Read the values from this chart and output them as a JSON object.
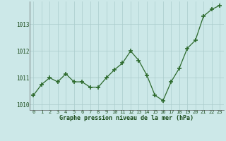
{
  "x": [
    0,
    1,
    2,
    3,
    4,
    5,
    6,
    7,
    8,
    9,
    10,
    11,
    12,
    13,
    14,
    15,
    16,
    17,
    18,
    19,
    20,
    21,
    22,
    23
  ],
  "y": [
    1010.35,
    1010.75,
    1011.0,
    1010.85,
    1011.15,
    1010.85,
    1010.85,
    1010.65,
    1010.65,
    1011.0,
    1011.3,
    1011.55,
    1012.0,
    1011.65,
    1011.1,
    1010.35,
    1010.15,
    1010.85,
    1011.35,
    1012.1,
    1012.4,
    1013.3,
    1013.55,
    1013.7
  ],
  "line_color": "#2d6a2d",
  "marker_color": "#2d6a2d",
  "bg_color": "#cce8e8",
  "grid_color": "#aacccc",
  "xlabel": "Graphe pression niveau de la mer (hPa)",
  "xlabel_color": "#1a4a1a",
  "tick_color": "#1a4a1a",
  "ylim": [
    1009.8,
    1013.85
  ],
  "yticks": [
    1010,
    1011,
    1012,
    1013
  ],
  "xticks": [
    0,
    1,
    2,
    3,
    4,
    5,
    6,
    7,
    8,
    9,
    10,
    11,
    12,
    13,
    14,
    15,
    16,
    17,
    18,
    19,
    20,
    21,
    22,
    23
  ]
}
